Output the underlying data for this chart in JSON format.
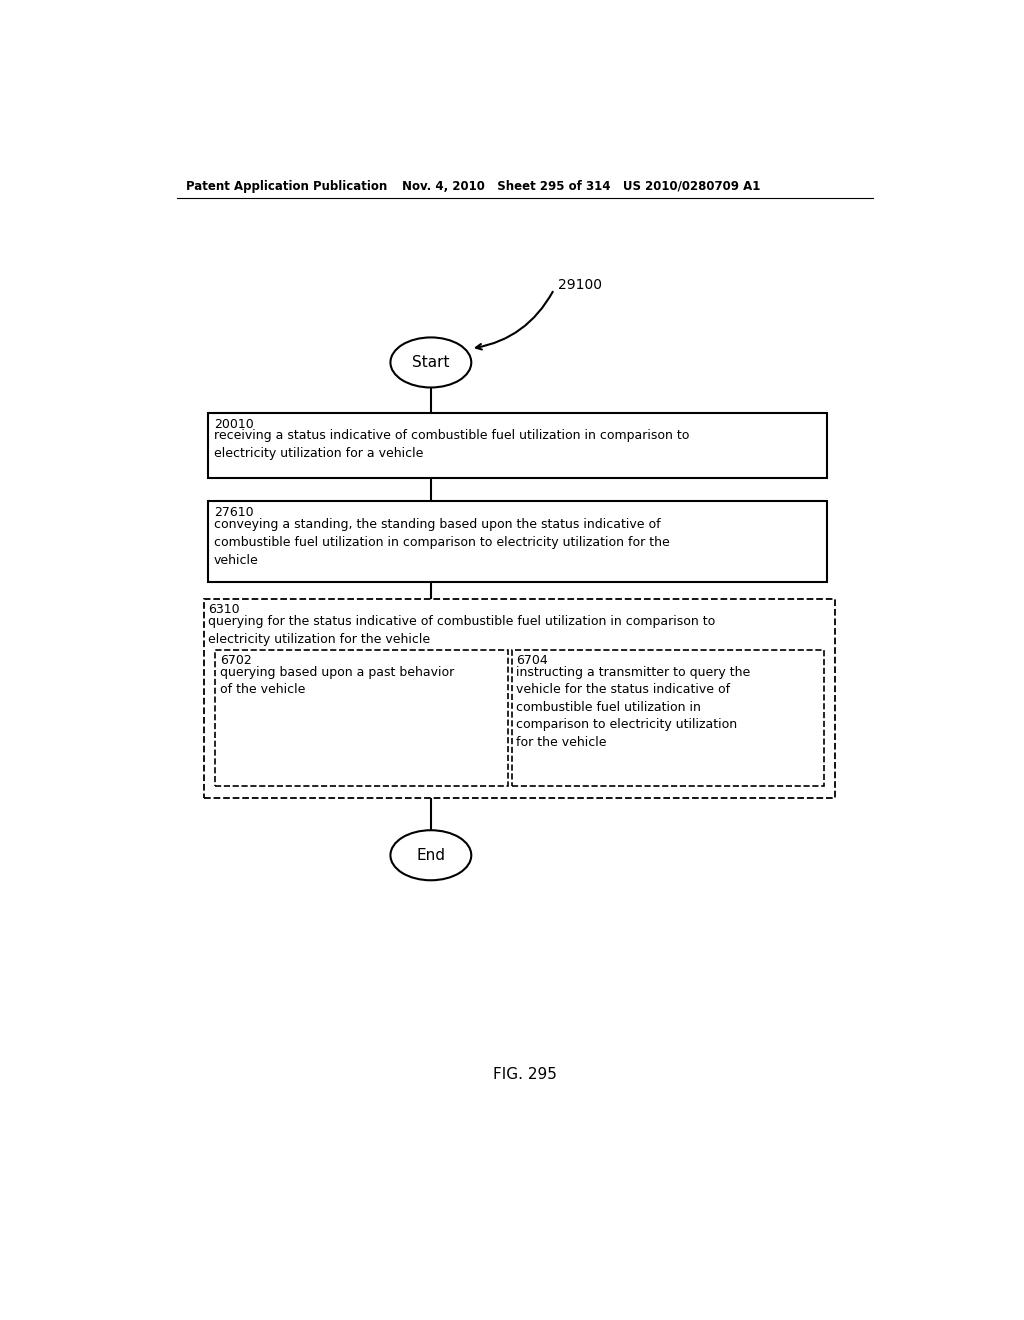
{
  "header_left": "Patent Application Publication",
  "header_middle": "Nov. 4, 2010   Sheet 295 of 314   US 2010/0280709 A1",
  "fig_label": "FIG. 295",
  "flow_label": "29100",
  "start_label": "Start",
  "end_label": "End",
  "box1_id": "20010",
  "box1_text": "receiving a status indicative of combustible fuel utilization in comparison to\nelectricity utilization for a vehicle",
  "box2_id": "27610",
  "box2_text": "conveying a standing, the standing based upon the status indicative of\ncombustible fuel utilization in comparison to electricity utilization for the\nvehicle",
  "outer_dashed_id": "6310",
  "outer_dashed_text": "querying for the status indicative of combustible fuel utilization in comparison to\nelectricity utilization for the vehicle",
  "inner_left_id": "6702",
  "inner_left_text": "querying based upon a past behavior\nof the vehicle",
  "inner_right_id": "6704",
  "inner_right_text": "instructing a transmitter to query the\nvehicle for the status indicative of\ncombustible fuel utilization in\ncomparison to electricity utilization\nfor the vehicle",
  "bg_color": "#ffffff",
  "text_color": "#000000"
}
